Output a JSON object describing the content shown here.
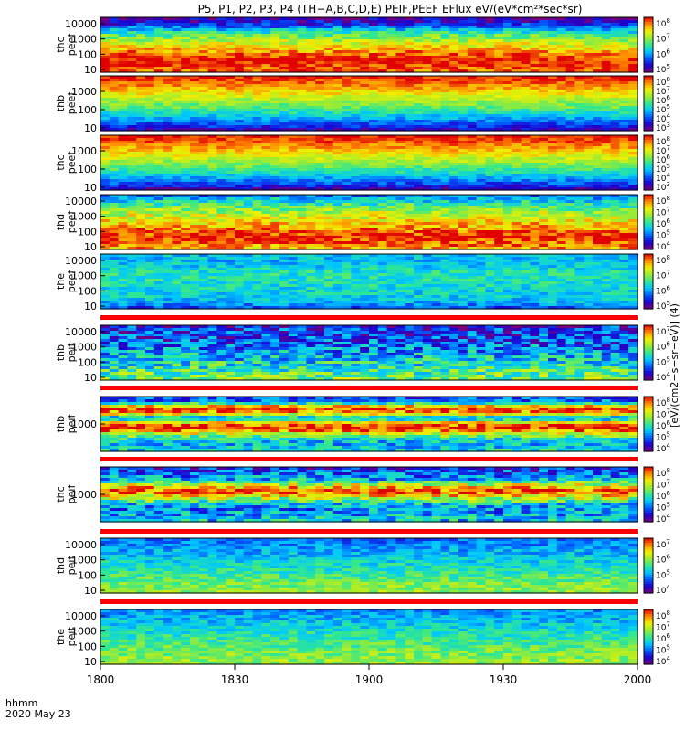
{
  "title": "P5, P1, P2, P3, P4 (TH−A,B,C,D,E) PEIF,PEEF EFlux eV/(eV*cm²*sec*sr)",
  "colorbar_title": "[eV/(cm2−s−sr−eV)] (4)",
  "corner": {
    "line1": "hhmm",
    "line2": "2020 May 23"
  },
  "chart_data": {
    "type": "heatmap",
    "title": "P5, P1, P2, P3, P4 (TH−A,B,C,D,E) PEIF,PEEF EFlux eV/(eV*cm²*sec*sr)",
    "date": "2020 May 23",
    "xlabel": "hhmm",
    "x_ticks": [
      "1800",
      "1830",
      "1900",
      "1930",
      "2000"
    ],
    "x_range": [
      "18:00",
      "20:00"
    ],
    "ylog": true,
    "zlog": true,
    "colormap": [
      "#7a007a",
      "#1a00d0",
      "#0060ff",
      "#00c8ff",
      "#30e890",
      "#a0ec30",
      "#f0f000",
      "#ff8800",
      "#e00000"
    ],
    "panels": [
      {
        "label1": "thc",
        "label2": "peef",
        "yticks": [
          "10",
          "100",
          "1000",
          "10000"
        ],
        "cbar_exps": [
          "5",
          "6",
          "7",
          "8"
        ],
        "profile": [
          0.05,
          0.15,
          0.38,
          0.55,
          0.68,
          0.78,
          0.92,
          1.0,
          0.95,
          0.88
        ],
        "variability": 0.12,
        "late_change": 0.7
      },
      {
        "label1": "thb",
        "label2": "peef",
        "yticks": [
          "10",
          "100",
          "1000"
        ],
        "cbar_exps": [
          "3",
          "4",
          "5",
          "6",
          "7",
          "8"
        ],
        "profile": [
          0.98,
          0.92,
          0.84,
          0.74,
          0.64,
          0.56,
          0.46,
          0.34,
          0.22,
          0.08
        ],
        "variability": 0.08,
        "late_change": 0.0
      },
      {
        "label1": "thc",
        "label2": "peef",
        "yticks": [
          "10",
          "100",
          "1000"
        ],
        "cbar_exps": [
          "3",
          "4",
          "5",
          "6",
          "7",
          "8"
        ],
        "profile": [
          0.98,
          0.93,
          0.85,
          0.76,
          0.66,
          0.57,
          0.47,
          0.34,
          0.22,
          0.06
        ],
        "variability": 0.08,
        "late_change": 0.0
      },
      {
        "label1": "thd",
        "label2": "peef",
        "yticks": [
          "10",
          "100",
          "1000",
          "10000"
        ],
        "cbar_exps": [
          "4",
          "5",
          "6",
          "7",
          "8"
        ],
        "profile": [
          0.25,
          0.42,
          0.55,
          0.66,
          0.74,
          0.82,
          0.92,
          0.99,
          0.9,
          0.82
        ],
        "variability": 0.14,
        "late_change": 0.5
      },
      {
        "label1": "the",
        "label2": "peef",
        "yticks": [
          "10",
          "100",
          "1000",
          "10000"
        ],
        "cbar_exps": [
          "5",
          "6",
          "7",
          "8"
        ],
        "profile": [
          0.38,
          0.36,
          0.4,
          0.45,
          0.46,
          0.44,
          0.42,
          0.4,
          0.35,
          0.2
        ],
        "variability": 0.1,
        "late_change": 0.15
      },
      {
        "label1": "thb",
        "label2": "peif",
        "yticks": [
          "10",
          "100",
          "1000",
          "10000"
        ],
        "cbar_exps": [
          "4",
          "5",
          "6",
          "7"
        ],
        "profile": [
          0.15,
          0.2,
          0.22,
          0.25,
          0.3,
          0.36,
          0.42,
          0.48,
          0.55,
          0.58
        ],
        "variability": 0.2,
        "late_change": 0.0
      },
      {
        "label1": "thb",
        "label2": "peif",
        "yticks": [
          "1000"
        ],
        "cbar_exps": [
          "4",
          "5",
          "6",
          "7",
          "8"
        ],
        "profile": [
          0.2,
          0.3,
          0.95,
          0.85,
          0.3,
          0.9,
          0.98,
          0.6,
          0.4,
          0.35,
          0.45
        ],
        "variability": 0.15,
        "late_change": 0.0
      },
      {
        "label1": "thc",
        "label2": "peif",
        "yticks": [
          "1000"
        ],
        "cbar_exps": [
          "4",
          "5",
          "6",
          "7",
          "8"
        ],
        "profile": [
          0.15,
          0.25,
          0.35,
          0.7,
          0.96,
          0.7,
          0.4,
          0.3,
          0.35,
          0.4
        ],
        "variability": 0.18,
        "late_change": 0.0
      },
      {
        "label1": "thd",
        "label2": "peif",
        "yticks": [
          "10",
          "100",
          "1000",
          "10000"
        ],
        "cbar_exps": [
          "4",
          "5",
          "6",
          "7"
        ],
        "profile": [
          0.25,
          0.3,
          0.34,
          0.37,
          0.42,
          0.46,
          0.5,
          0.55,
          0.6,
          0.62
        ],
        "variability": 0.1,
        "late_change": 0.0
      },
      {
        "label1": "the",
        "label2": "peif",
        "yticks": [
          "10",
          "100",
          "1000",
          "10000"
        ],
        "cbar_exps": [
          "4",
          "5",
          "6",
          "7",
          "8"
        ],
        "profile": [
          0.3,
          0.34,
          0.38,
          0.42,
          0.46,
          0.5,
          0.54,
          0.58,
          0.6,
          0.62
        ],
        "variability": 0.1,
        "late_change": 0.0
      }
    ]
  }
}
